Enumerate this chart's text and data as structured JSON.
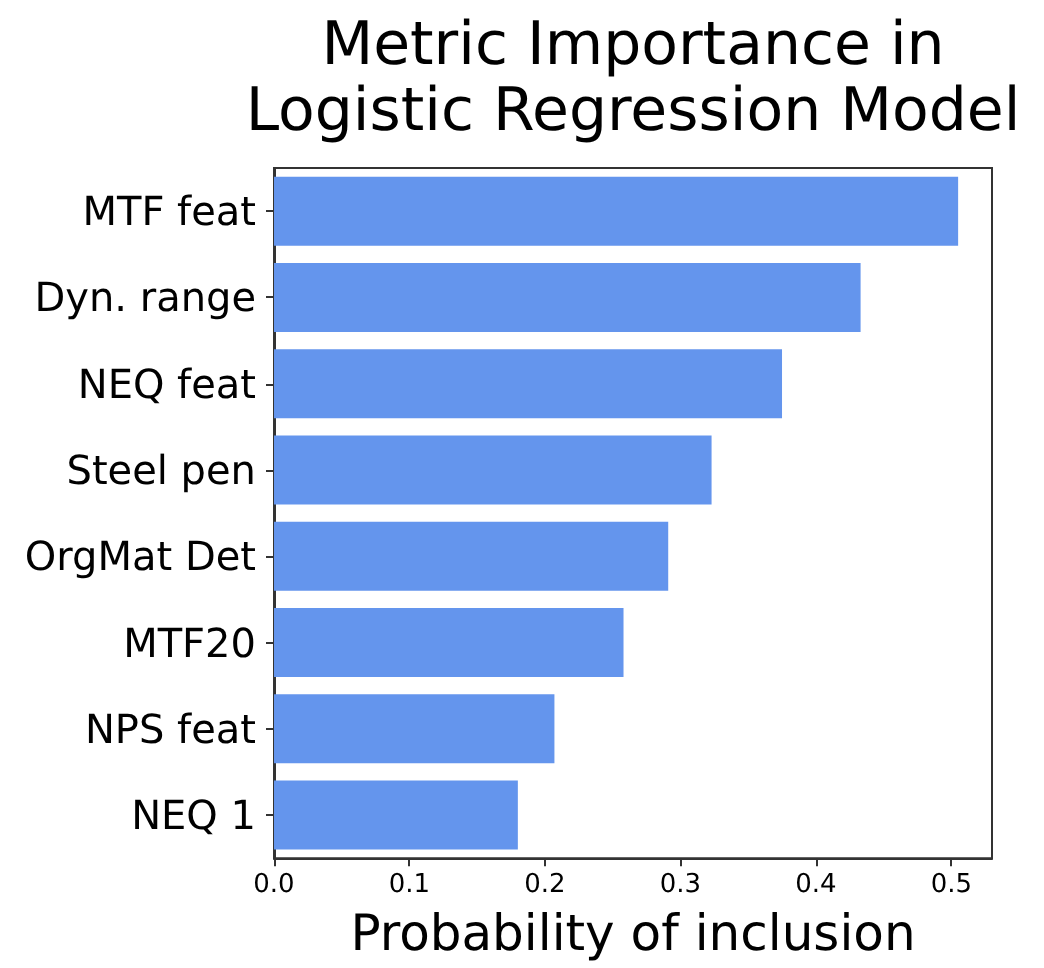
{
  "chart_data": {
    "type": "bar",
    "orientation": "horizontal",
    "title": "Metric Importance in\nLogistic Regression Model",
    "xlabel": "Probability of inclusion",
    "categories": [
      "MTF feat",
      "Dyn. range",
      "NEQ feat",
      "Steel pen",
      "OrgMat Det",
      "MTF20",
      "NPS feat",
      "NEQ 1"
    ],
    "values": [
      0.505,
      0.433,
      0.375,
      0.323,
      0.291,
      0.258,
      0.207,
      0.18
    ],
    "color": "#6495ed",
    "xlim": [
      0,
      0.53
    ],
    "xticks": [
      {
        "value": 0,
        "label": "0.0"
      },
      0.1,
      0.2,
      0.3,
      0.4,
      0.5
    ]
  }
}
